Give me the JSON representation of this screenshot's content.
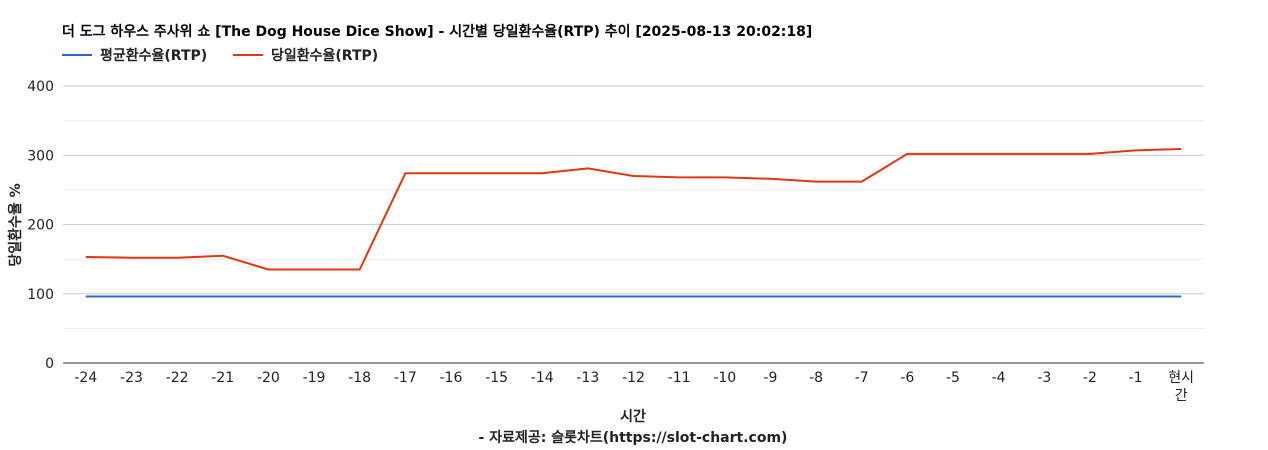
{
  "chart_data": {
    "type": "line",
    "title": "더 도그 하우스 주사위 쇼 [The Dog House Dice Show] - 시간별 당일환수율(RTP) 추이 [2025-08-13 20:02:18]",
    "xlabel": "시간",
    "ylabel": "당일환수율 %",
    "credit": "- 자료제공: 슬롯차트(https://slot-chart.com)",
    "ylim": [
      0,
      400
    ],
    "yticks": [
      "0",
      "100",
      "200",
      "300",
      "400"
    ],
    "grid": true,
    "legend_position": "top-left",
    "categories": [
      "-24",
      "-23",
      "-22",
      "-21",
      "-20",
      "-19",
      "-18",
      "-17",
      "-16",
      "-15",
      "-14",
      "-13",
      "-12",
      "-11",
      "-10",
      "-9",
      "-8",
      "-7",
      "-6",
      "-5",
      "-4",
      "-3",
      "-2",
      "-1",
      "현시간"
    ],
    "series": [
      {
        "name": "평균환수율(RTP)",
        "color": "#3366cc",
        "values": [
          96,
          96,
          96,
          96,
          96,
          96,
          96,
          96,
          96,
          96,
          96,
          96,
          96,
          96,
          96,
          96,
          96,
          96,
          96,
          96,
          96,
          96,
          96,
          96,
          96
        ]
      },
      {
        "name": "당일환수율(RTP)",
        "color": "#dc3912",
        "values": [
          153,
          152,
          152,
          155,
          135,
          135,
          135,
          274,
          274,
          274,
          274,
          281,
          270,
          268,
          268,
          266,
          262,
          262,
          302,
          302,
          302,
          302,
          302,
          307,
          309
        ]
      }
    ]
  }
}
